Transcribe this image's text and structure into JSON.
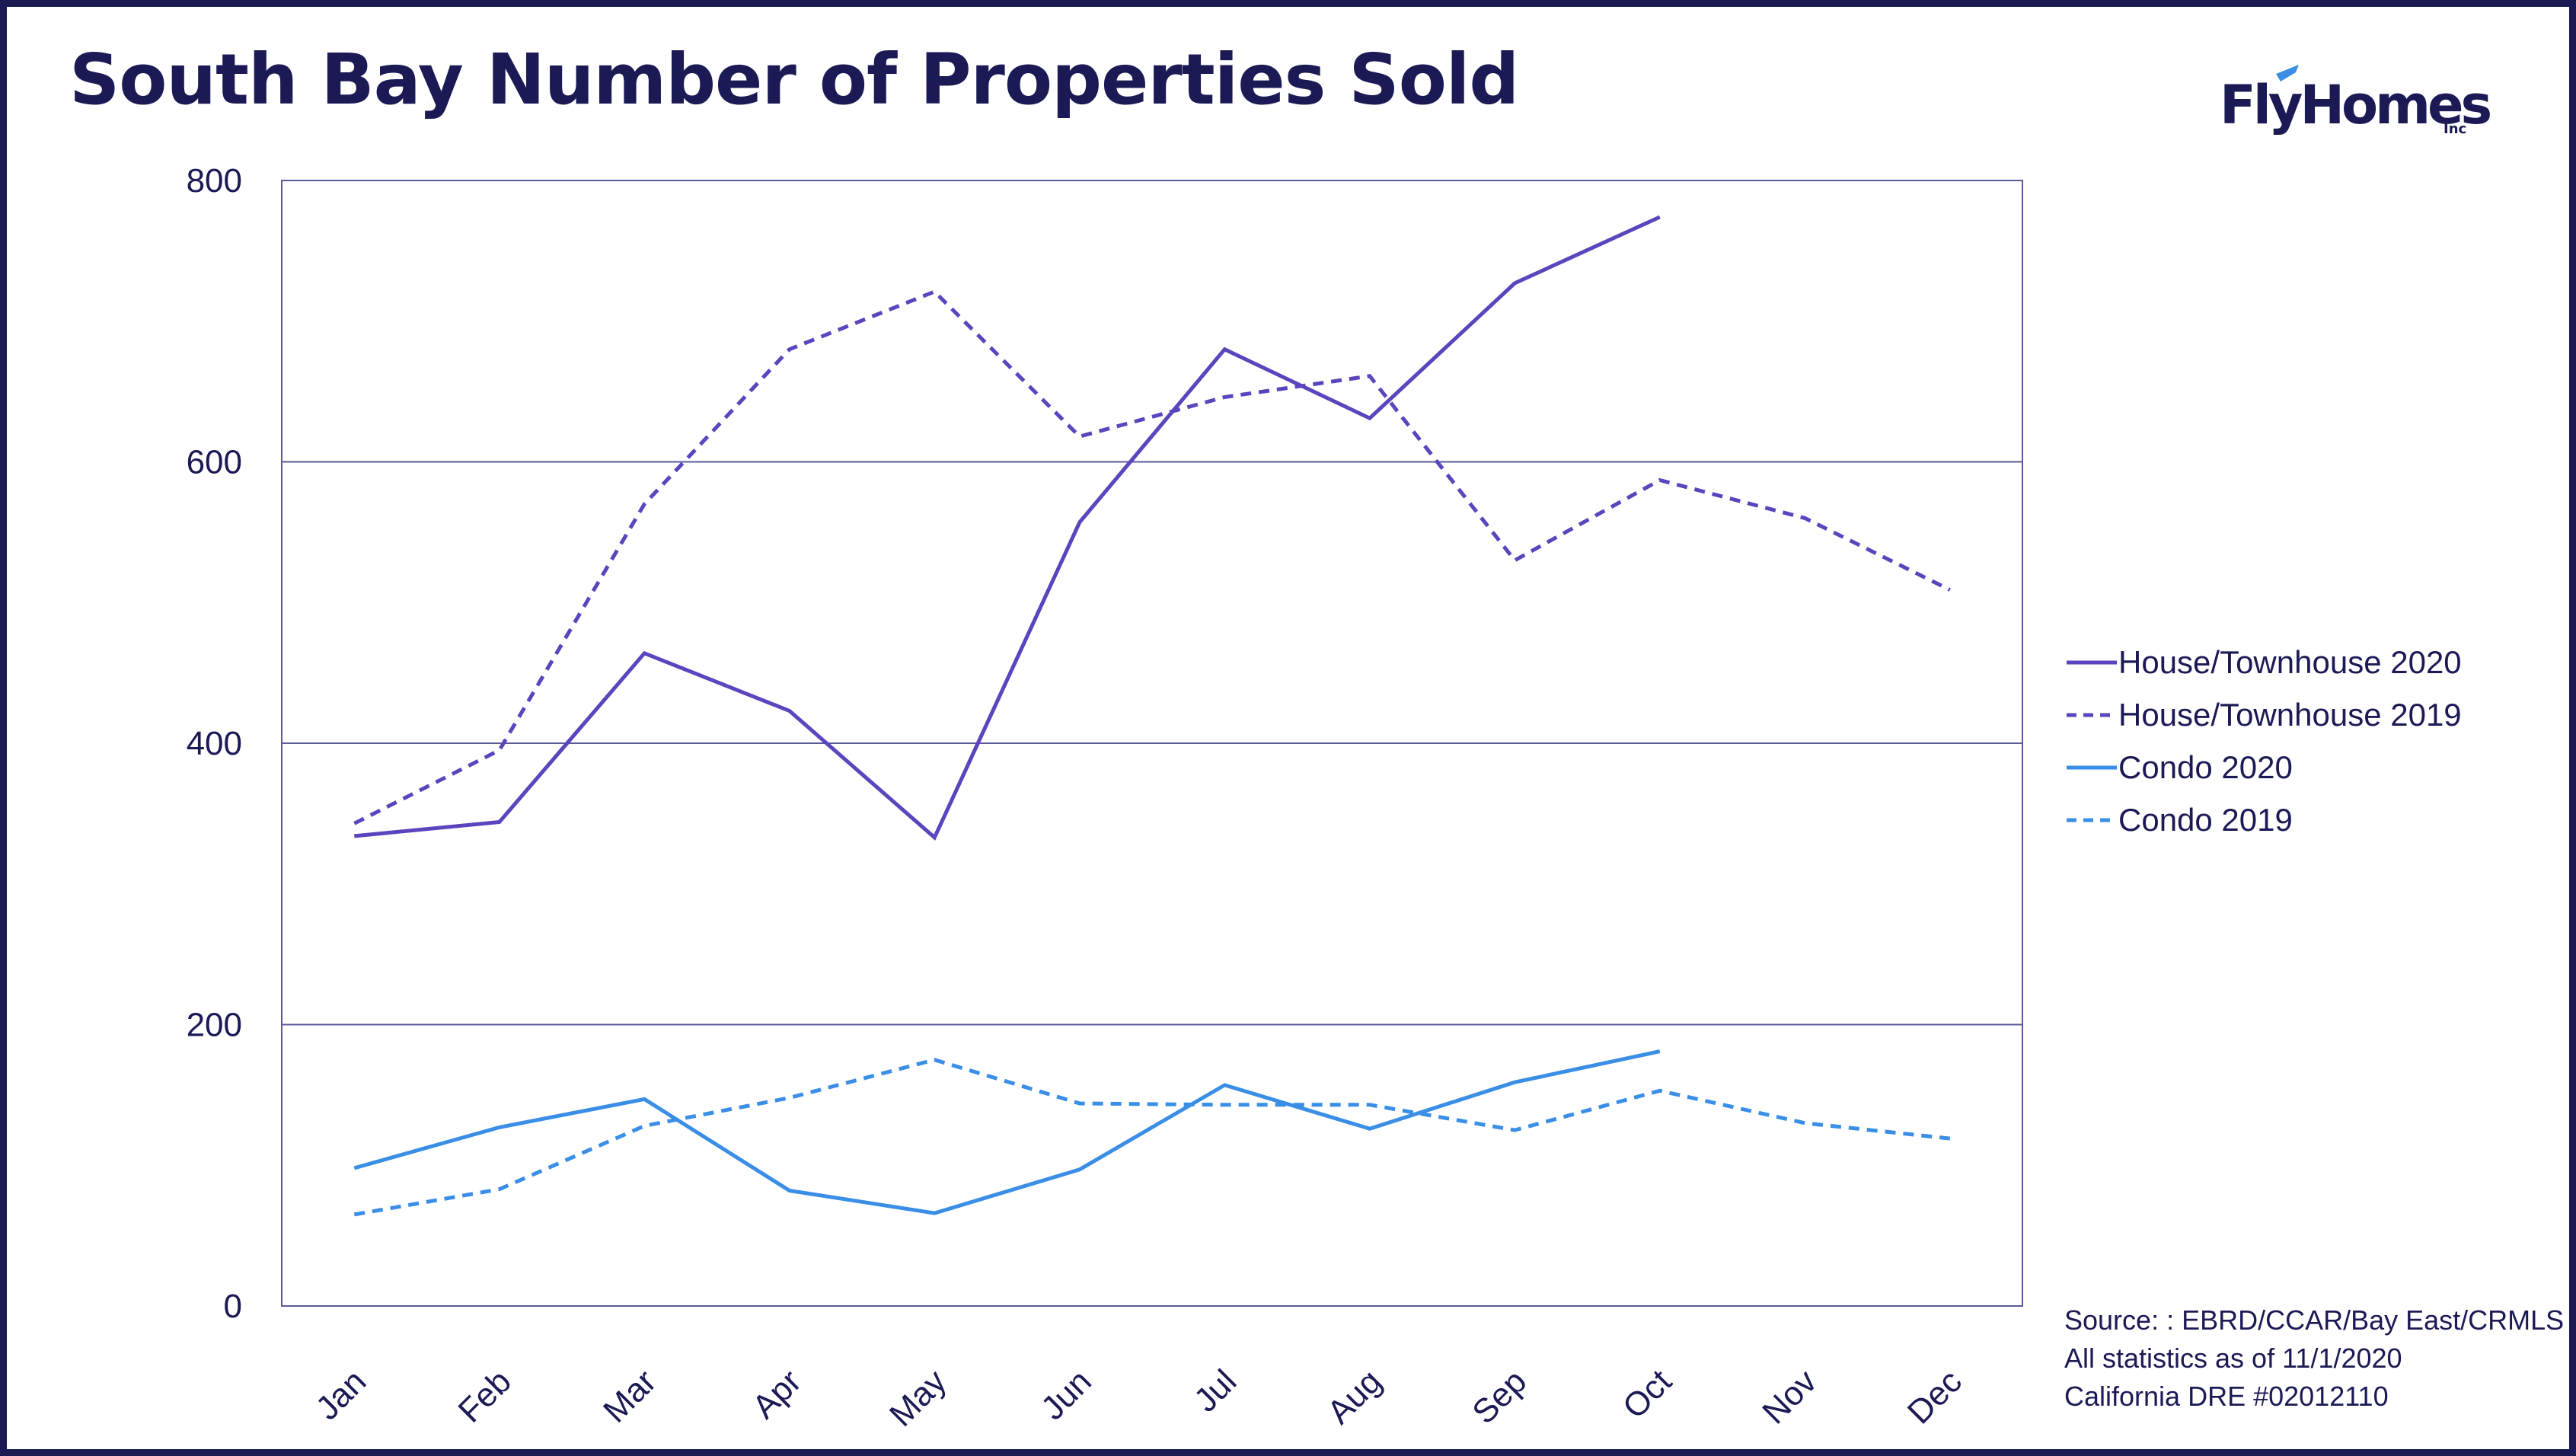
{
  "title": "South Bay Number of Properties Sold",
  "logo": {
    "name": "FlyHomes",
    "suffix": "Inc"
  },
  "source_lines": [
    "Source: : EBRD/CCAR/Bay East/CRMLS",
    "All statistics as of 11/1/2020",
    "California DRE #02012110"
  ],
  "colors": {
    "purple": "#5b44bd",
    "blue": "#3a8ee6",
    "navy": "#1b1a55",
    "grid": "#5a5a9a"
  },
  "chart_data": {
    "type": "line",
    "title": "South Bay Number of Properties Sold",
    "xlabel": "",
    "ylabel": "",
    "categories": [
      "Jan",
      "Feb",
      "Mar",
      "Apr",
      "May",
      "Jun",
      "Jul",
      "Aug",
      "Sep",
      "Oct",
      "Nov",
      "Dec"
    ],
    "ylim": [
      0,
      800
    ],
    "yticks": [
      0,
      200,
      400,
      600,
      800
    ],
    "grid": true,
    "legend_position": "right",
    "series": [
      {
        "name": "House/Townhouse 2020",
        "color": "#5b44bd",
        "dash": false,
        "values": [
          334,
          344,
          464,
          423,
          333,
          557,
          680,
          631,
          727,
          774,
          null,
          null
        ]
      },
      {
        "name": "House/Townhouse 2019",
        "color": "#5b44bd",
        "dash": true,
        "values": [
          343,
          395,
          570,
          680,
          721,
          618,
          646,
          661,
          530,
          587,
          560,
          509
        ]
      },
      {
        "name": "Condo 2020",
        "color": "#3a8ee6",
        "dash": false,
        "values": [
          98,
          127,
          147,
          82,
          66,
          97,
          157,
          126,
          159,
          181,
          null,
          null
        ]
      },
      {
        "name": "Condo 2019",
        "color": "#3a8ee6",
        "dash": true,
        "values": [
          65,
          83,
          128,
          148,
          175,
          144,
          143,
          143,
          125,
          153,
          130,
          119
        ]
      }
    ]
  }
}
